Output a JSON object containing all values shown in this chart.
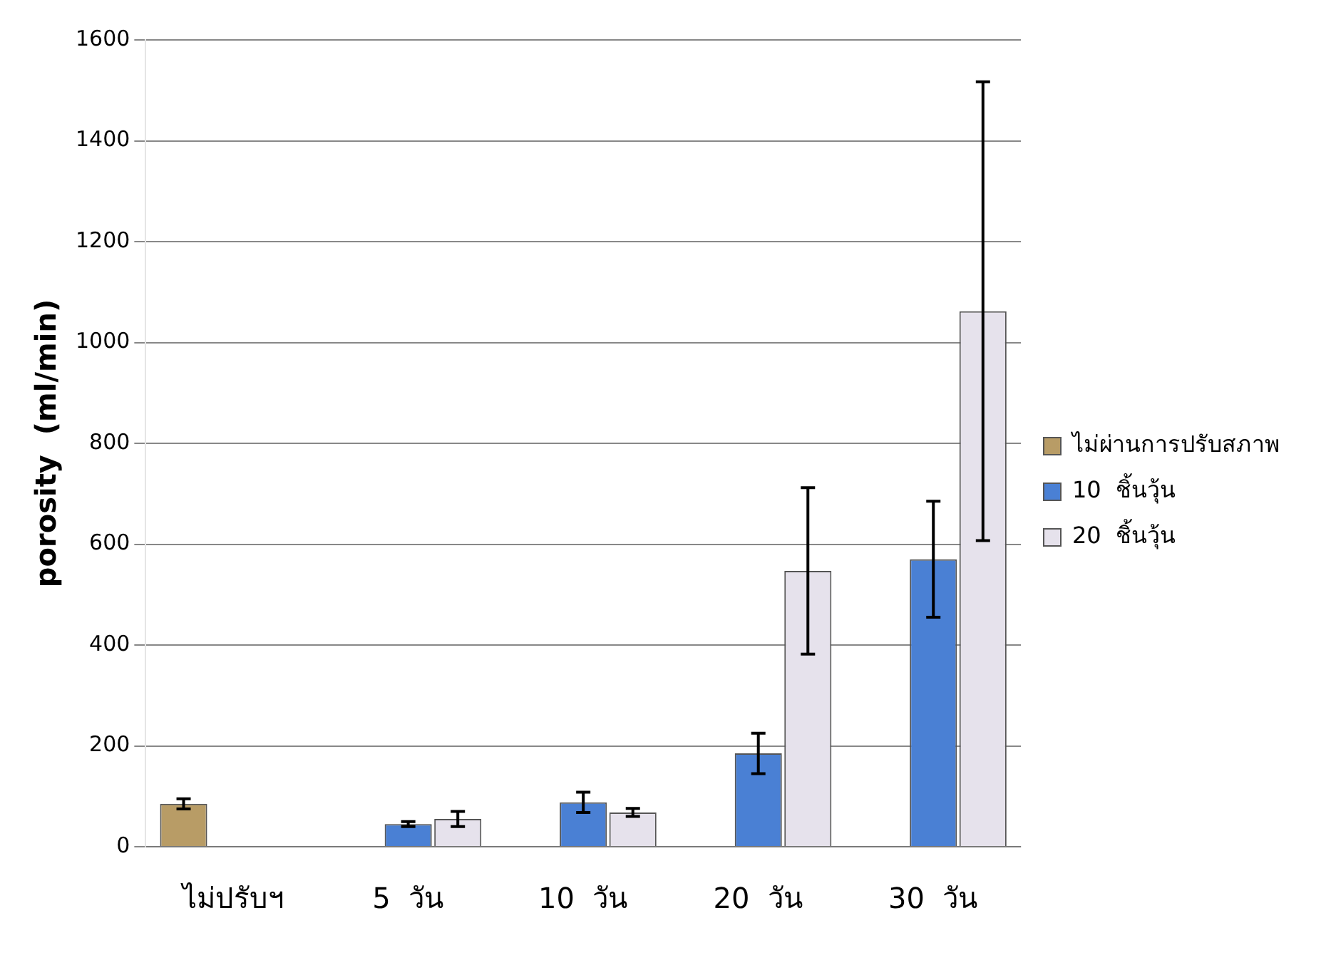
{
  "chart_data": {
    "type": "bar",
    "ylabel": "porosity  (ml/min)",
    "categories": [
      "ไม่ปรับฯ",
      "5  วัน",
      "10  วัน",
      "20  วัน",
      "30  วัน"
    ],
    "series": [
      {
        "name": "ไม่ผ่านการปรับสภาพ",
        "color": "#b89c66",
        "values": [
          85,
          null,
          null,
          null,
          null
        ],
        "errors": [
          10,
          null,
          null,
          null,
          null
        ]
      },
      {
        "name": "10  ชิ้นวุ้น",
        "color": "#4a80d4",
        "values": [
          null,
          45,
          88,
          185,
          570
        ],
        "errors": [
          null,
          5,
          20,
          40,
          115
        ]
      },
      {
        "name": "20  ชิ้นวุ้น",
        "color": "#e6e2ec",
        "values": [
          null,
          55,
          68,
          547,
          1062
        ],
        "errors": [
          null,
          15,
          8,
          165,
          455
        ]
      }
    ],
    "ylim": [
      0,
      1600
    ],
    "yticks": [
      0,
      200,
      400,
      600,
      800,
      1000,
      1200,
      1400,
      1600
    ],
    "grid": "y",
    "legend": "right"
  }
}
